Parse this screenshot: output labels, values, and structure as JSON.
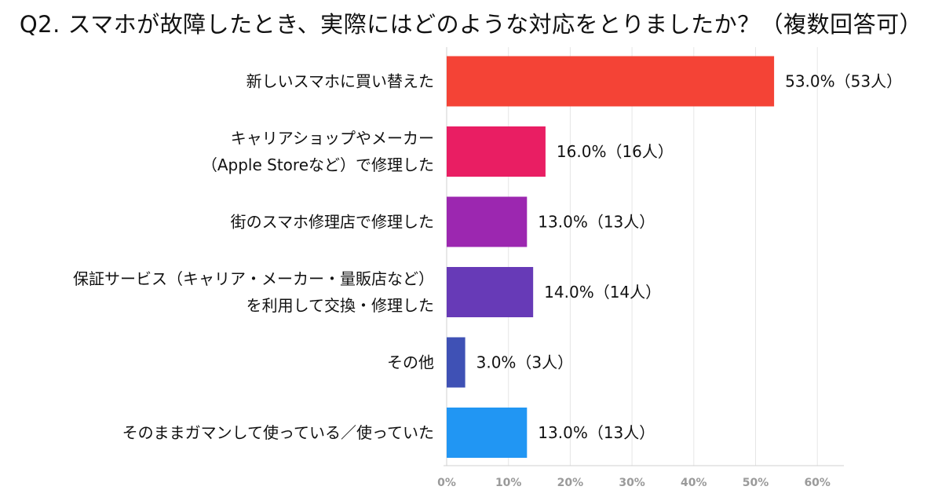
{
  "chart_data": {
    "type": "bar",
    "orientation": "horizontal",
    "title": "Q2. スマホが故障したとき、実際にはどのような対応をとりましたか？（複数回答可）",
    "categories": [
      [
        "新しいスマホに買い替えた"
      ],
      [
        "キャリアショップやメーカー",
        "（Apple Storeなど）で修理した"
      ],
      [
        "街のスマホ修理店で修理した"
      ],
      [
        "保証サービス（キャリア・メーカー・量販店など）",
        "を利用して交換・修理した"
      ],
      [
        "その他"
      ],
      [
        "そのままガマンして使っている／使っていた"
      ]
    ],
    "values": [
      53.0,
      16.0,
      13.0,
      14.0,
      3.0,
      13.0
    ],
    "value_labels": [
      "53.0%（53人）",
      "16.0%（16人）",
      "13.0%（13人）",
      "14.0%（14人）",
      "3.0%（3人）",
      "13.0%（13人）"
    ],
    "colors": [
      "#f44336",
      "#e91e63",
      "#9c27b0",
      "#673ab7",
      "#3f51b5",
      "#2196f3"
    ],
    "xticks": [
      0,
      10,
      20,
      30,
      40,
      50,
      60
    ],
    "xtick_labels": [
      "0%",
      "10%",
      "20%",
      "30%",
      "40%",
      "50%",
      "60%"
    ],
    "xlim": [
      0,
      64
    ],
    "grid": true,
    "legend": "none"
  }
}
